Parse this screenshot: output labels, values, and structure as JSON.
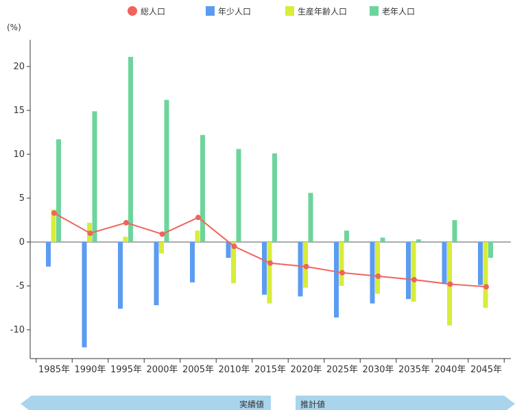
{
  "chart_data": {
    "type": "bar",
    "ylabel": "(%)",
    "ylim": [
      -13,
      23
    ],
    "yticks": [
      -10,
      -5,
      0,
      5,
      10,
      15,
      20
    ],
    "categories": [
      "1985年",
      "1990年",
      "1995年",
      "2000年",
      "2005年",
      "2010年",
      "2015年",
      "2020年",
      "2025年",
      "2030年",
      "2035年",
      "2040年",
      "2045年"
    ],
    "series": [
      {
        "name": "総人口",
        "kind": "line",
        "color": "#f0645a",
        "values": [
          3.3,
          1.0,
          2.2,
          0.9,
          2.8,
          -0.5,
          -2.4,
          -2.8,
          -3.5,
          -3.9,
          -4.3,
          -4.8,
          -5.1
        ]
      },
      {
        "name": "年少人口",
        "kind": "bar",
        "color": "#5b9cf2",
        "values": [
          -2.8,
          -12.0,
          -7.6,
          -7.2,
          -4.6,
          -1.8,
          -6.0,
          -6.2,
          -8.6,
          -7.0,
          -6.5,
          -4.8,
          -4.9
        ]
      },
      {
        "name": "生産年齢人口",
        "kind": "bar",
        "color": "#d8ec3a",
        "values": [
          3.7,
          2.2,
          0.6,
          -1.3,
          1.3,
          -4.7,
          -7.0,
          -5.2,
          -5.0,
          -5.9,
          -6.8,
          -9.5,
          -7.5
        ]
      },
      {
        "name": "老年人口",
        "kind": "bar",
        "color": "#6dd59b",
        "values": [
          11.7,
          14.9,
          21.1,
          16.2,
          12.2,
          10.6,
          10.1,
          5.6,
          1.3,
          0.5,
          0.3,
          2.5,
          -1.8
        ]
      }
    ],
    "legend_position": "top",
    "bands": {
      "actual_label": "実績値",
      "forecast_label": "推計値",
      "color": "#a9d4ec"
    }
  }
}
